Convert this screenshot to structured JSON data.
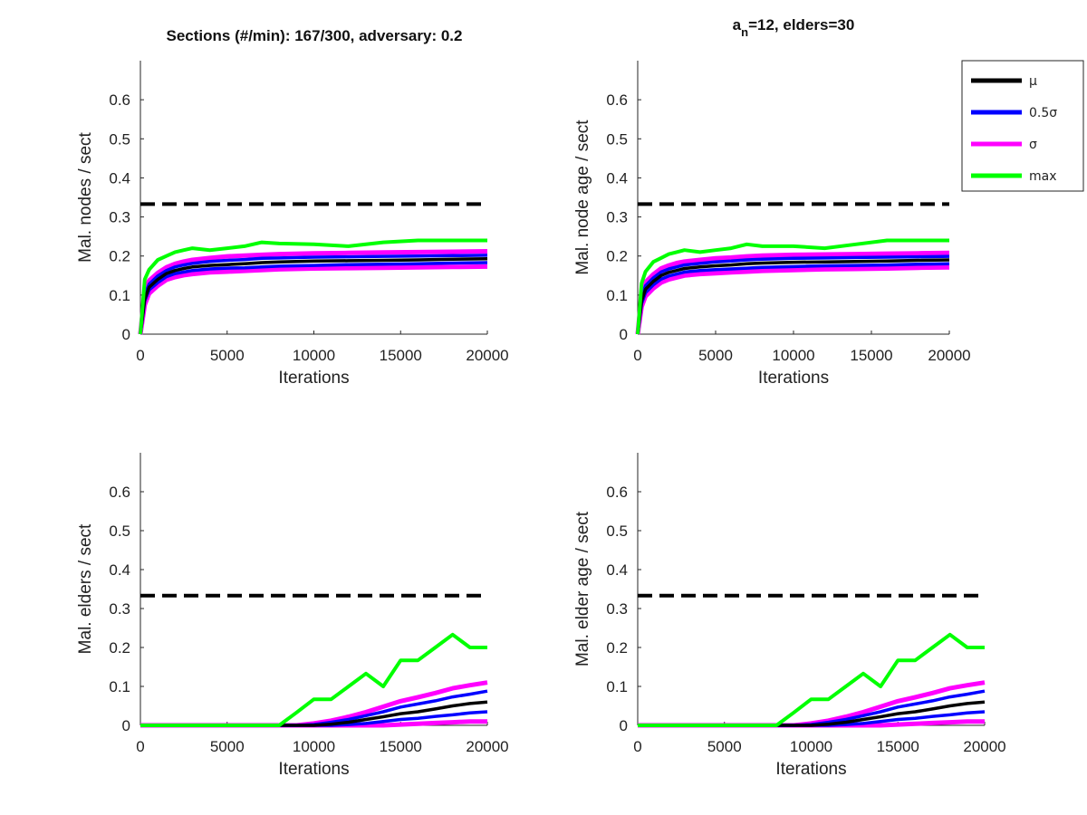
{
  "figure": {
    "title_left": "Sections (#/min): 167/300, adversary: 0.2",
    "title_right_a": "a",
    "title_right_sub": "n",
    "title_right_rest": "=12, elders=30"
  },
  "colors": {
    "mu": "#000000",
    "half_sigma": "#0000ff",
    "sigma": "#ff00ff",
    "max": "#00ff00",
    "threshold": "#000000"
  },
  "legend": {
    "placement": "top-right",
    "entries": [
      {
        "key": "mu",
        "label": "μ"
      },
      {
        "key": "half_sigma",
        "label": "0.5σ"
      },
      {
        "key": "sigma",
        "label": "σ"
      },
      {
        "key": "max",
        "label": "max"
      }
    ]
  },
  "chart_data": [
    {
      "type": "line",
      "xlabel": "Iterations",
      "ylabel": "Mal. nodes / sect",
      "xlim": [
        0,
        20000
      ],
      "ylim": [
        0,
        0.7
      ],
      "xticks": [
        "0",
        "5000",
        "10000",
        "15000",
        "20000"
      ],
      "yticks": [
        "0",
        "0.1",
        "0.2",
        "0.3",
        "0.4",
        "0.5",
        "0.6"
      ],
      "threshold": 0.333,
      "x": [
        0,
        250,
        500,
        1000,
        1500,
        2000,
        2500,
        3000,
        4000,
        5000,
        6000,
        7000,
        8000,
        10000,
        12000,
        14000,
        16000,
        18000,
        20000
      ],
      "series": [
        {
          "key": "mu",
          "values": [
            0,
            0.09,
            0.12,
            0.14,
            0.155,
            0.163,
            0.168,
            0.172,
            0.176,
            0.178,
            0.18,
            0.183,
            0.185,
            0.187,
            0.188,
            0.189,
            0.19,
            0.192,
            0.193
          ]
        },
        {
          "key": "half_sigma",
          "values": [
            0,
            0.1,
            0.128,
            0.149,
            0.163,
            0.172,
            0.177,
            0.181,
            0.186,
            0.189,
            0.191,
            0.194,
            0.195,
            0.197,
            0.198,
            0.199,
            0.2,
            0.201,
            0.202
          ]
        },
        {
          "key": "half_sigma",
          "values": [
            0,
            0.085,
            0.113,
            0.132,
            0.147,
            0.155,
            0.159,
            0.163,
            0.167,
            0.169,
            0.17,
            0.172,
            0.174,
            0.176,
            0.178,
            0.179,
            0.18,
            0.182,
            0.183
          ]
        },
        {
          "key": "sigma",
          "values": [
            0,
            0.11,
            0.137,
            0.157,
            0.171,
            0.18,
            0.186,
            0.19,
            0.195,
            0.199,
            0.201,
            0.203,
            0.205,
            0.207,
            0.208,
            0.209,
            0.21,
            0.211,
            0.212
          ]
        },
        {
          "key": "sigma",
          "values": [
            0,
            0.075,
            0.104,
            0.124,
            0.139,
            0.146,
            0.151,
            0.154,
            0.158,
            0.16,
            0.162,
            0.164,
            0.166,
            0.168,
            0.169,
            0.17,
            0.171,
            0.172,
            0.173
          ]
        },
        {
          "key": "max",
          "values": [
            0,
            0.14,
            0.165,
            0.19,
            0.2,
            0.21,
            0.215,
            0.22,
            0.215,
            0.22,
            0.225,
            0.235,
            0.232,
            0.23,
            0.225,
            0.235,
            0.24,
            0.24,
            0.24
          ]
        }
      ]
    },
    {
      "type": "line",
      "xlabel": "Iterations",
      "ylabel": "Mal. node age / sect",
      "xlim": [
        0,
        20000
      ],
      "ylim": [
        0,
        0.7
      ],
      "xticks": [
        "0",
        "5000",
        "10000",
        "15000",
        "20000"
      ],
      "yticks": [
        "0",
        "0.1",
        "0.2",
        "0.3",
        "0.4",
        "0.5",
        "0.6"
      ],
      "threshold": 0.333,
      "x": [
        0,
        250,
        500,
        1000,
        1500,
        2000,
        2500,
        3000,
        4000,
        5000,
        6000,
        7000,
        8000,
        10000,
        12000,
        14000,
        16000,
        18000,
        20000
      ],
      "series": [
        {
          "key": "mu",
          "values": [
            0,
            0.085,
            0.115,
            0.135,
            0.15,
            0.158,
            0.163,
            0.168,
            0.172,
            0.175,
            0.177,
            0.18,
            0.182,
            0.184,
            0.185,
            0.186,
            0.187,
            0.189,
            0.19
          ]
        },
        {
          "key": "half_sigma",
          "values": [
            0,
            0.095,
            0.124,
            0.144,
            0.159,
            0.167,
            0.172,
            0.177,
            0.181,
            0.185,
            0.187,
            0.19,
            0.192,
            0.194,
            0.195,
            0.196,
            0.197,
            0.198,
            0.199
          ]
        },
        {
          "key": "half_sigma",
          "values": [
            0,
            0.078,
            0.106,
            0.126,
            0.141,
            0.149,
            0.154,
            0.159,
            0.163,
            0.165,
            0.167,
            0.169,
            0.171,
            0.173,
            0.175,
            0.176,
            0.177,
            0.179,
            0.18
          ]
        },
        {
          "key": "sigma",
          "values": [
            0,
            0.105,
            0.133,
            0.153,
            0.168,
            0.176,
            0.182,
            0.186,
            0.19,
            0.194,
            0.196,
            0.199,
            0.201,
            0.203,
            0.204,
            0.205,
            0.206,
            0.207,
            0.208
          ]
        },
        {
          "key": "sigma",
          "values": [
            0,
            0.07,
            0.097,
            0.117,
            0.132,
            0.14,
            0.145,
            0.15,
            0.154,
            0.156,
            0.158,
            0.16,
            0.162,
            0.164,
            0.166,
            0.167,
            0.168,
            0.17,
            0.171
          ]
        },
        {
          "key": "max",
          "values": [
            0,
            0.13,
            0.16,
            0.185,
            0.195,
            0.205,
            0.21,
            0.215,
            0.21,
            0.215,
            0.22,
            0.23,
            0.225,
            0.225,
            0.22,
            0.23,
            0.24,
            0.24,
            0.24
          ]
        }
      ]
    },
    {
      "type": "line",
      "xlabel": "Iterations",
      "ylabel": "Mal. elders / sect",
      "xlim": [
        0,
        20000
      ],
      "ylim": [
        0,
        0.7
      ],
      "xticks": [
        "0",
        "5000",
        "10000",
        "15000",
        "20000"
      ],
      "yticks": [
        "0",
        "0.1",
        "0.2",
        "0.3",
        "0.4",
        "0.5",
        "0.6"
      ],
      "threshold": 0.333,
      "x": [
        0,
        8000,
        9000,
        10000,
        11000,
        12000,
        13000,
        14000,
        15000,
        16000,
        17000,
        18000,
        19000,
        20000
      ],
      "series": [
        {
          "key": "mu",
          "values": [
            0,
            0,
            0,
            0,
            0.003,
            0.008,
            0.015,
            0.022,
            0.03,
            0.035,
            0.042,
            0.05,
            0.056,
            0.06
          ]
        },
        {
          "key": "half_sigma",
          "values": [
            0,
            0,
            0,
            0.002,
            0.008,
            0.015,
            0.025,
            0.035,
            0.047,
            0.055,
            0.063,
            0.073,
            0.08,
            0.088
          ]
        },
        {
          "key": "half_sigma",
          "values": [
            0,
            0,
            0,
            0,
            0,
            0.002,
            0.005,
            0.01,
            0.015,
            0.018,
            0.023,
            0.027,
            0.032,
            0.035
          ]
        },
        {
          "key": "sigma",
          "values": [
            0,
            0,
            0,
            0.005,
            0.012,
            0.022,
            0.034,
            0.048,
            0.062,
            0.072,
            0.083,
            0.095,
            0.103,
            0.11
          ]
        },
        {
          "key": "sigma",
          "values": [
            0,
            0,
            0,
            0,
            0,
            0,
            0,
            0,
            0.002,
            0.004,
            0.006,
            0.008,
            0.01,
            0.01
          ]
        },
        {
          "key": "max",
          "values": [
            0,
            0,
            0.033,
            0.067,
            0.067,
            0.1,
            0.133,
            0.1,
            0.167,
            0.167,
            0.2,
            0.233,
            0.2,
            0.2
          ]
        }
      ]
    },
    {
      "type": "line",
      "xlabel": "Iterations",
      "ylabel": "Mal. elder age / sect",
      "xlim": [
        0,
        20000
      ],
      "ylim": [
        0,
        0.7
      ],
      "xticks": [
        "0",
        "5000",
        "10000",
        "15000",
        "20000"
      ],
      "yticks": [
        "0",
        "0.1",
        "0.2",
        "0.3",
        "0.4",
        "0.5",
        "0.6"
      ],
      "threshold": 0.333,
      "x": [
        0,
        8000,
        9000,
        10000,
        11000,
        12000,
        13000,
        14000,
        15000,
        16000,
        17000,
        18000,
        19000,
        20000
      ],
      "series": [
        {
          "key": "mu",
          "values": [
            0,
            0,
            0,
            0,
            0.003,
            0.008,
            0.015,
            0.022,
            0.03,
            0.035,
            0.042,
            0.05,
            0.056,
            0.06
          ]
        },
        {
          "key": "half_sigma",
          "values": [
            0,
            0,
            0,
            0.002,
            0.008,
            0.015,
            0.025,
            0.035,
            0.047,
            0.055,
            0.063,
            0.073,
            0.08,
            0.088
          ]
        },
        {
          "key": "half_sigma",
          "values": [
            0,
            0,
            0,
            0,
            0,
            0.002,
            0.005,
            0.01,
            0.015,
            0.018,
            0.023,
            0.027,
            0.032,
            0.035
          ]
        },
        {
          "key": "sigma",
          "values": [
            0,
            0,
            0,
            0.005,
            0.012,
            0.022,
            0.034,
            0.048,
            0.062,
            0.072,
            0.083,
            0.095,
            0.103,
            0.11
          ]
        },
        {
          "key": "sigma",
          "values": [
            0,
            0,
            0,
            0,
            0,
            0,
            0,
            0,
            0.002,
            0.004,
            0.006,
            0.008,
            0.01,
            0.01
          ]
        },
        {
          "key": "max",
          "values": [
            0,
            0,
            0.033,
            0.067,
            0.067,
            0.1,
            0.133,
            0.1,
            0.167,
            0.167,
            0.2,
            0.233,
            0.2,
            0.2
          ]
        }
      ]
    }
  ]
}
